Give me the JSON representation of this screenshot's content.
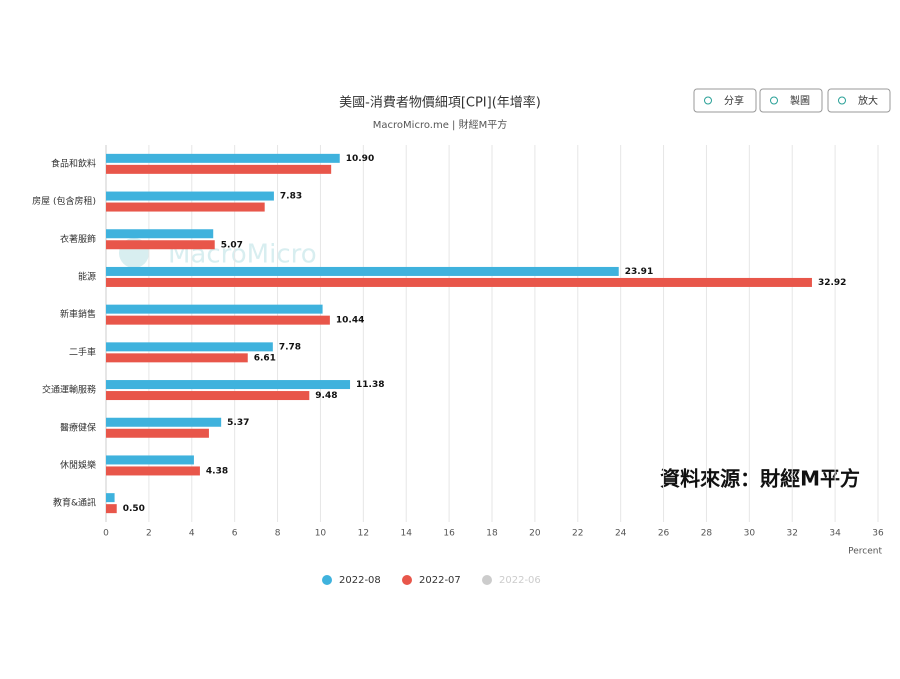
{
  "chart_data": {
    "type": "bar",
    "orientation": "horizontal",
    "title": "美國-消費者物價細項[CPI](年增率)",
    "subtitle": "MacroMicro.me | 財經M平方",
    "x_label": "Percent",
    "watermark": "MacroMicro",
    "annotation": "資料來源：財經M平方",
    "buttons": [
      "分享",
      "製圖",
      "放大"
    ],
    "categories": [
      "食品和飲料",
      "房屋 (包含房租)",
      "衣著服飾",
      "能源",
      "新車銷售",
      "二手車",
      "交通運輸服務",
      "醫療健保",
      "休閒娛樂",
      "教育&通訊"
    ],
    "series": [
      {
        "name": "2022-08",
        "color": "#3fb2dd",
        "values": [
          10.9,
          7.83,
          5.0,
          23.91,
          10.1,
          7.78,
          11.38,
          5.37,
          4.1,
          0.4
        ],
        "value_labels": [
          "10.90",
          "7.83",
          null,
          "23.91",
          null,
          "7.78",
          "11.38",
          "5.37",
          null,
          null
        ]
      },
      {
        "name": "2022-07",
        "color": "#e8564a",
        "values": [
          10.5,
          7.4,
          5.07,
          32.92,
          10.44,
          6.61,
          9.48,
          4.8,
          4.38,
          0.5
        ],
        "value_labels": [
          null,
          null,
          "5.07",
          "32.92",
          "10.44",
          "6.61",
          "9.48",
          null,
          "4.38",
          "0.50"
        ]
      }
    ],
    "hidden_series": [
      {
        "name": "2022-06",
        "color": "#cccccc"
      }
    ],
    "xlim": [
      0,
      36
    ],
    "xticks": [
      0,
      2,
      4,
      6,
      8,
      10,
      12,
      14,
      16,
      18,
      20,
      22,
      24,
      26,
      28,
      30,
      32,
      34,
      36
    ],
    "grid": true
  }
}
